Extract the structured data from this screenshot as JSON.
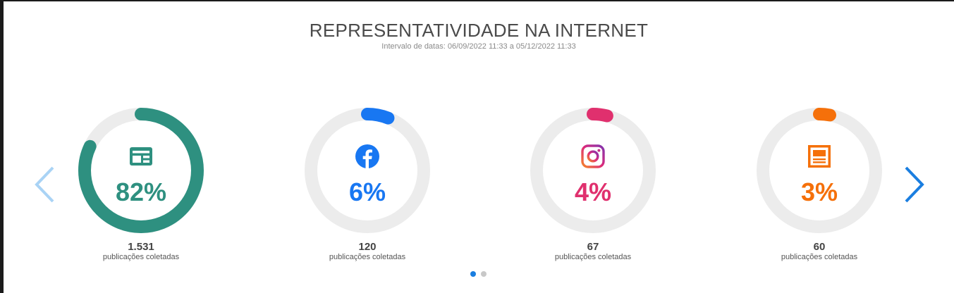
{
  "header": {
    "title": "REPRESENTATIVIDADE NA INTERNET",
    "subtitle": "Intervalo de datas: 06/09/2022 11:33 a 05/12/2022 11:33"
  },
  "cards": [
    {
      "percent_label": "82%",
      "percent": 82,
      "count": "1.531",
      "label": "publicações coletadas",
      "icon": "news-site-icon",
      "color": "#2e9080"
    },
    {
      "percent_label": "6%",
      "percent": 6,
      "count": "120",
      "label": "publicações coletadas",
      "icon": "facebook-icon",
      "color": "#1877f2"
    },
    {
      "percent_label": "4%",
      "percent": 4,
      "count": "67",
      "label": "publicações coletadas",
      "icon": "instagram-icon",
      "color": "#e0306e"
    },
    {
      "percent_label": "3%",
      "percent": 3,
      "count": "60",
      "label": "publicações coletadas",
      "icon": "newspaper-icon",
      "color": "#f5700a"
    }
  ],
  "colors": {
    "track": "#ececec",
    "arrow_prev": "#a9d3f5",
    "arrow_next": "#1a7ee0",
    "dot_active": "#1a7ee0",
    "dot_inactive": "#c8c8c8"
  },
  "pagination": {
    "total": 2,
    "active": 0
  }
}
